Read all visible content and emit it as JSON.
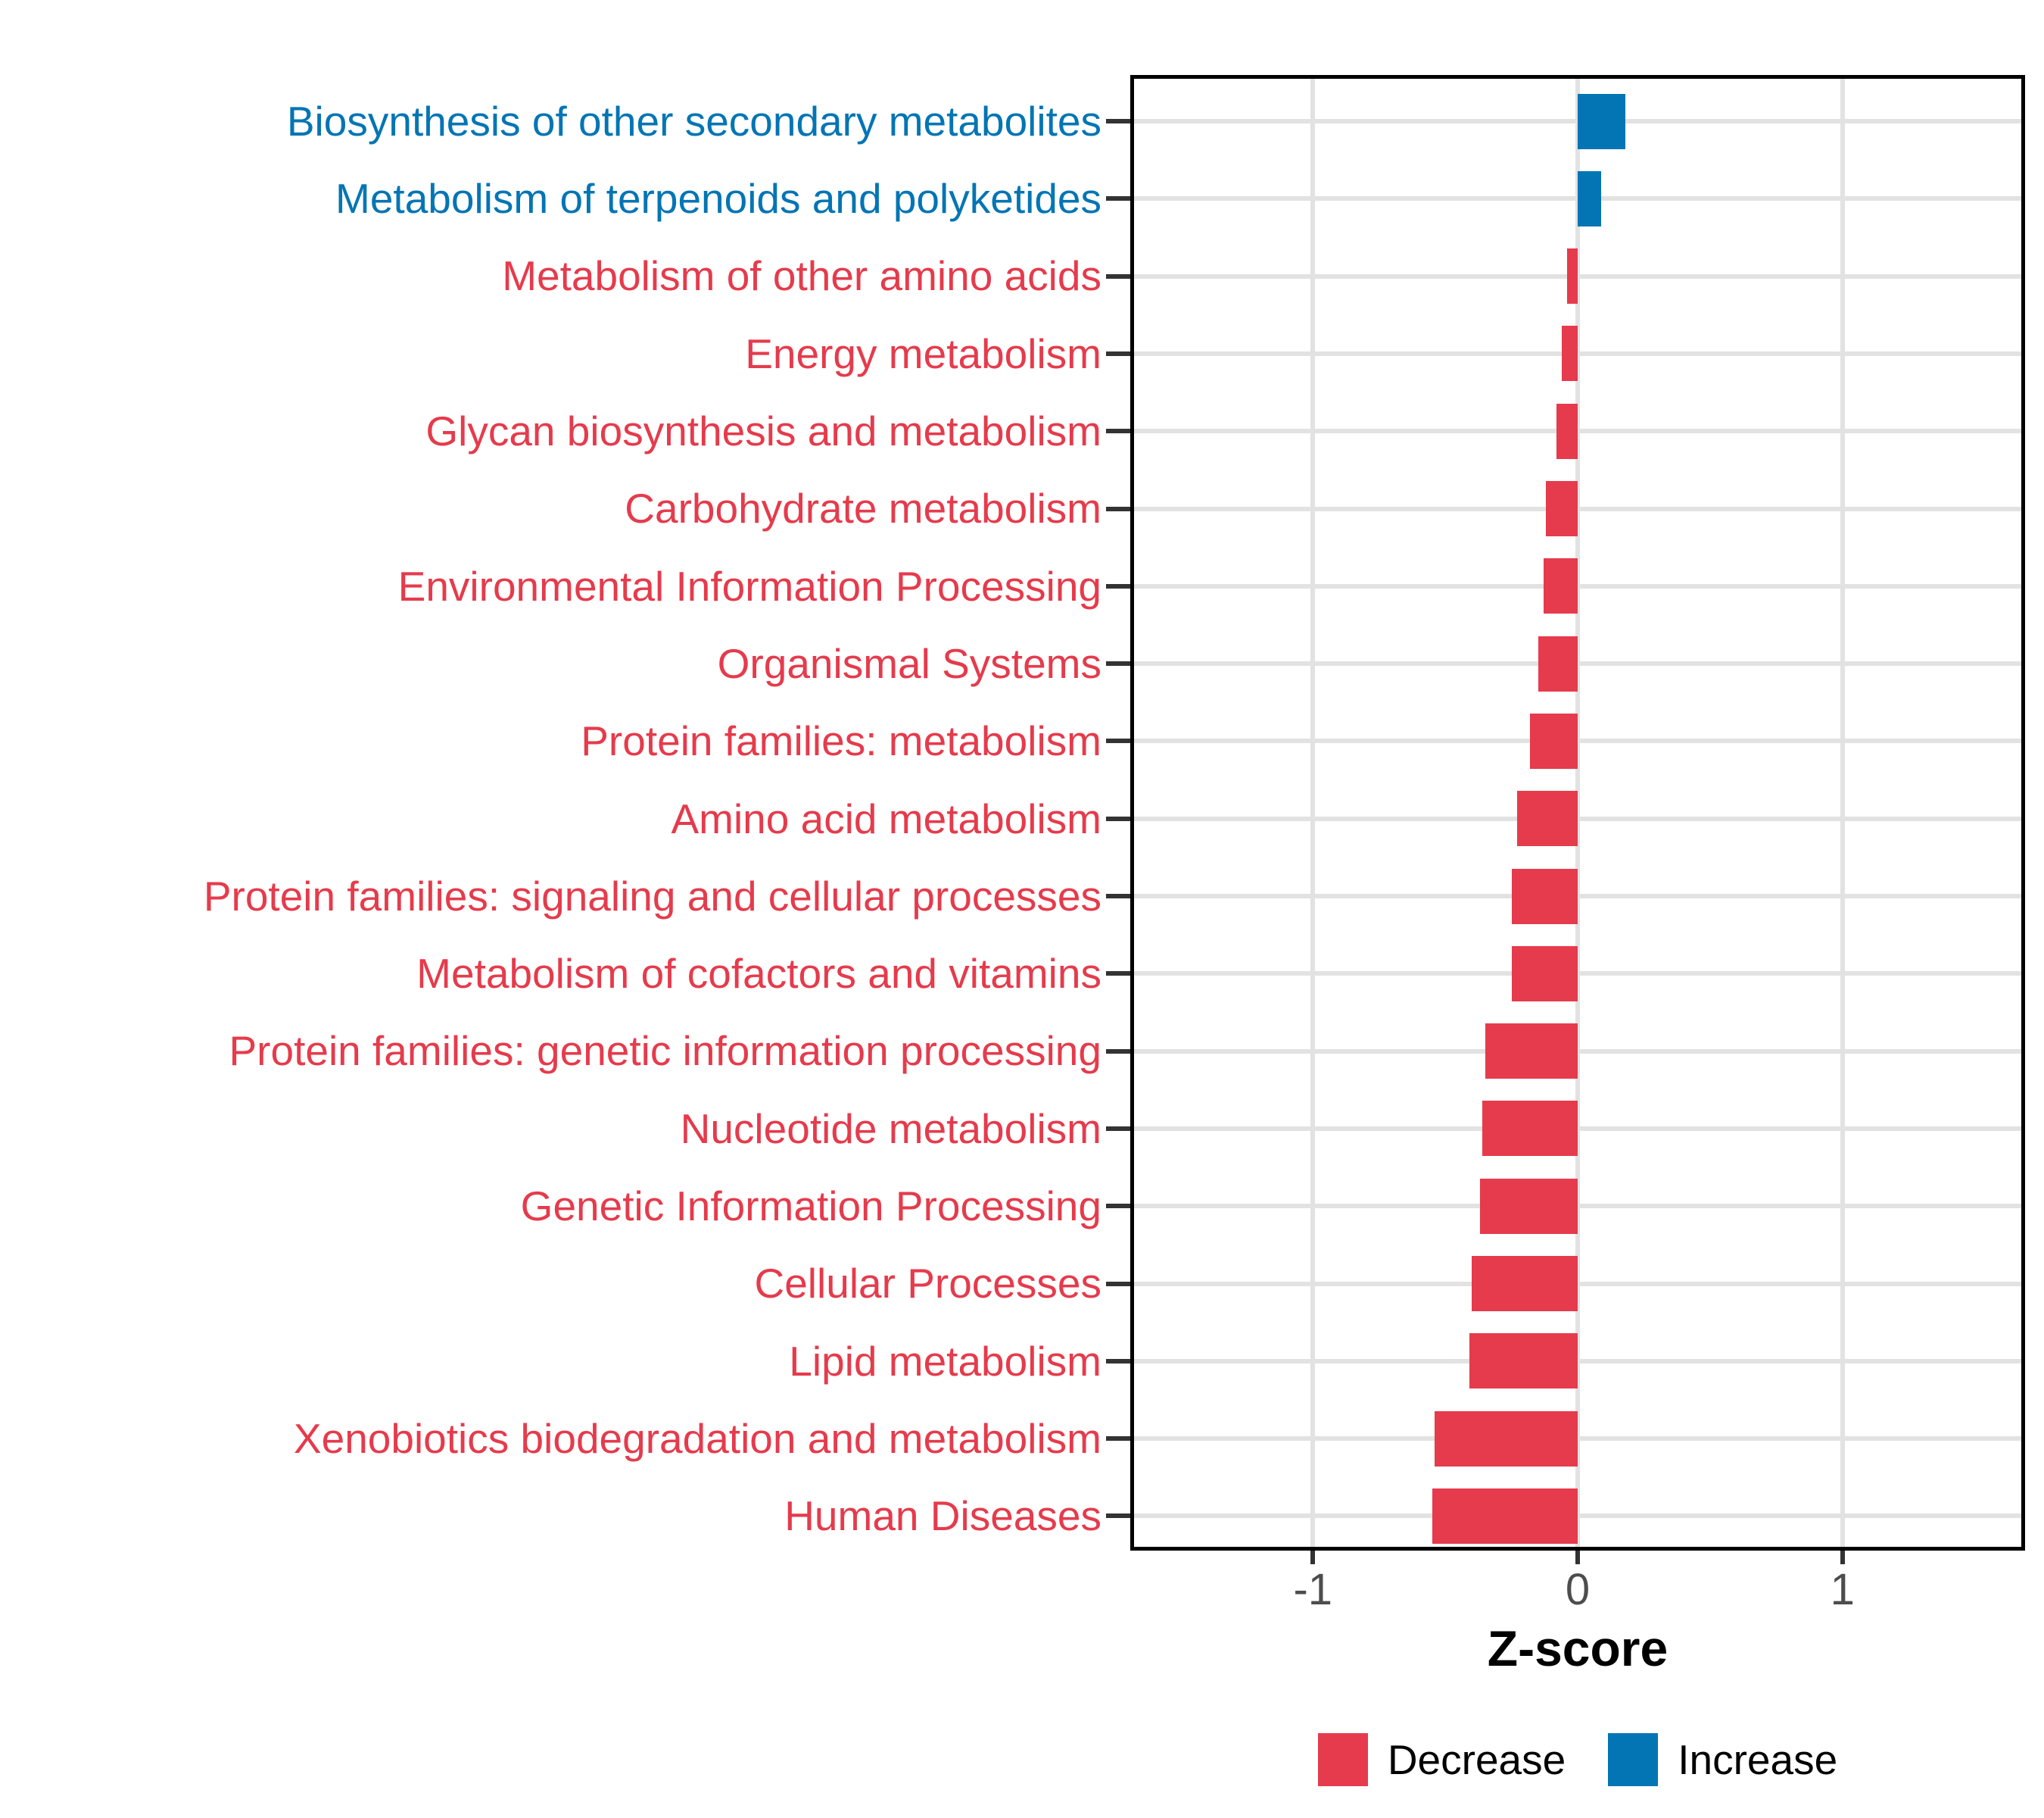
{
  "chart_data": {
    "type": "bar",
    "orientation": "horizontal",
    "xlabel": "Z-score",
    "categories": [
      "Biosynthesis of other secondary metabolites",
      "Metabolism of terpenoids and polyketides",
      "Metabolism of other amino acids",
      "Energy metabolism",
      "Glycan biosynthesis and metabolism",
      "Carbohydrate metabolism",
      "Environmental Information Processing",
      "Organismal Systems",
      "Protein families: metabolism",
      "Amino acid metabolism",
      "Protein families: signaling and cellular processes",
      "Metabolism of cofactors and vitamins",
      "Protein families: genetic information processing",
      "Nucleotide metabolism",
      "Genetic Information Processing",
      "Cellular Processes",
      "Lipid metabolism",
      "Xenobiotics biodegradation and metabolism",
      "Human Diseases"
    ],
    "values": [
      0.18,
      0.09,
      -0.04,
      -0.06,
      -0.08,
      -0.12,
      -0.13,
      -0.15,
      -0.18,
      -0.23,
      -0.25,
      -0.25,
      -0.35,
      -0.36,
      -0.37,
      -0.4,
      -0.41,
      -0.54,
      -0.55
    ],
    "xlim": [
      -1.69,
      1.69
    ],
    "xticks": [
      -1,
      0,
      1
    ],
    "xtick_labels": [
      "-1",
      "0",
      "1"
    ],
    "grid": true,
    "colors": {
      "increase": "#0375B4",
      "decrease": "#E53B4C"
    },
    "legend": [
      {
        "label": "Decrease",
        "color": "#E53B4C",
        "direction": "decrease"
      },
      {
        "label": "Increase",
        "color": "#0375B4",
        "direction": "increase"
      }
    ],
    "legend_position": "bottom"
  }
}
